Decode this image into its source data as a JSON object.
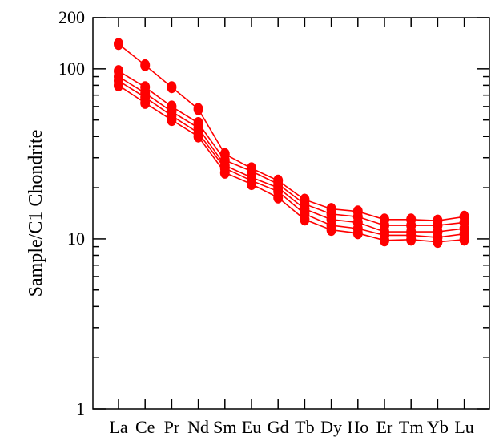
{
  "chart_data": {
    "type": "line",
    "title": "",
    "xlabel": "",
    "ylabel": "Sample/C1 Chondrite",
    "yscale": "log",
    "ylim": [
      1,
      200
    ],
    "yticks": [
      1,
      10,
      100,
      200
    ],
    "ytick_labels": [
      "1",
      "10",
      "100",
      "200"
    ],
    "grid": false,
    "legend": "none",
    "color": "#ff0000",
    "categories": [
      "La",
      "Ce",
      "Pr",
      "Nd",
      "Sm",
      "Eu",
      "Gd",
      "Tb",
      "Dy",
      "Ho",
      "Er",
      "Tm",
      "Yb",
      "Lu"
    ],
    "series": [
      {
        "values": [
          140,
          105,
          78,
          58,
          31.5,
          26,
          22,
          17,
          15,
          14.5,
          13,
          13,
          12.8,
          13.5
        ]
      },
      {
        "values": [
          97,
          78,
          60,
          48,
          29,
          25,
          21,
          16,
          14,
          13.5,
          12,
          12,
          12,
          12.5
        ]
      },
      {
        "values": [
          90,
          72,
          56,
          45,
          27,
          23,
          20,
          15,
          13,
          12.5,
          11,
          11,
          11,
          11.5
        ]
      },
      {
        "values": [
          85,
          68,
          53,
          42,
          26,
          22,
          19,
          14,
          12,
          11.5,
          10.5,
          10.5,
          10.2,
          10.7
        ]
      },
      {
        "values": [
          80,
          63,
          50,
          40,
          24.5,
          21,
          17.5,
          13,
          11.3,
          10.8,
          9.8,
          9.9,
          9.6,
          9.9
        ]
      }
    ]
  }
}
